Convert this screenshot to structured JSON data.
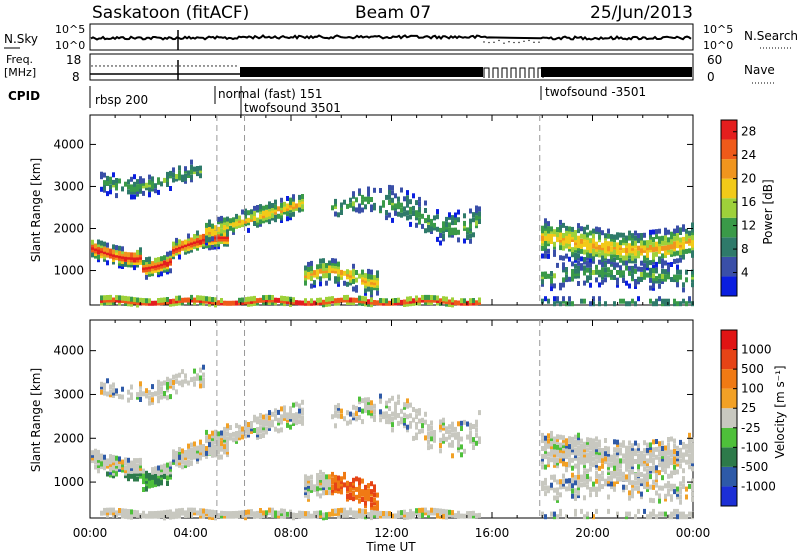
{
  "header": {
    "station": "Saskatoon (fitACF)",
    "beam": "Beam 07",
    "date": "25/Jun/2013"
  },
  "panels": {
    "nsky": {
      "label": "N.Sky",
      "ticks": [
        "10^5",
        "10^0"
      ],
      "right_ticks": [
        "10^5",
        "10^0"
      ],
      "right_label": "N.Search"
    },
    "freq": {
      "label_line1": "Freq.",
      "label_line2": "[MHz]",
      "ticks": [
        "18",
        "8"
      ],
      "right_ticks": [
        "60",
        "0"
      ],
      "right_label": "Nave"
    },
    "cpid": {
      "label": "CPID",
      "segments": [
        "rbsp 200",
        "normal (fast) 151",
        "twofsound 3501",
        "twofsound -3501"
      ]
    }
  },
  "chart_data": [
    {
      "type": "heatmap",
      "title": "",
      "ylabel": "Slant Range [km]",
      "xlabel": "Time UT",
      "x_ticks": [
        "00:00",
        "04:00",
        "08:00",
        "12:00",
        "16:00",
        "20:00",
        "00:00"
      ],
      "y_ticks": [
        "1000",
        "2000",
        "3000",
        "4000"
      ],
      "ylim": [
        180,
        4700
      ],
      "xlim_hours": [
        0,
        24
      ],
      "colorbar": {
        "label": "Power [dB]",
        "ticks": [
          "4",
          "8",
          "12",
          "16",
          "20",
          "24",
          "28"
        ],
        "range": [
          0,
          30
        ],
        "colors": [
          "#0a1ee0",
          "#3a4fa8",
          "#2f7a6a",
          "#3a9a48",
          "#9ed13a",
          "#f2ca19",
          "#f0951e",
          "#ef5a1a",
          "#e41e1e"
        ]
      },
      "data_gap_hours": [
        15.9,
        17.9
      ]
    },
    {
      "type": "heatmap",
      "title": "",
      "ylabel": "Slant Range [km]",
      "xlabel": "Time UT",
      "x_ticks": [
        "00:00",
        "04:00",
        "08:00",
        "12:00",
        "16:00",
        "20:00",
        "00:00"
      ],
      "y_ticks": [
        "1000",
        "2000",
        "3000",
        "4000"
      ],
      "ylim": [
        180,
        4700
      ],
      "xlim_hours": [
        0,
        24
      ],
      "colorbar": {
        "label": "Velocity [m s⁻¹]",
        "ticks": [
          "1000",
          "500",
          "100",
          "25",
          "-25",
          "-100",
          "-500",
          "-1000"
        ],
        "colors": [
          "#1c2fd6",
          "#2e5aa8",
          "#2d7a4a",
          "#4ec03a",
          "#c8c8c0",
          "#f2a126",
          "#f07a14",
          "#e64416",
          "#e01414"
        ]
      },
      "data_gap_hours": [
        15.9,
        17.9
      ]
    }
  ]
}
